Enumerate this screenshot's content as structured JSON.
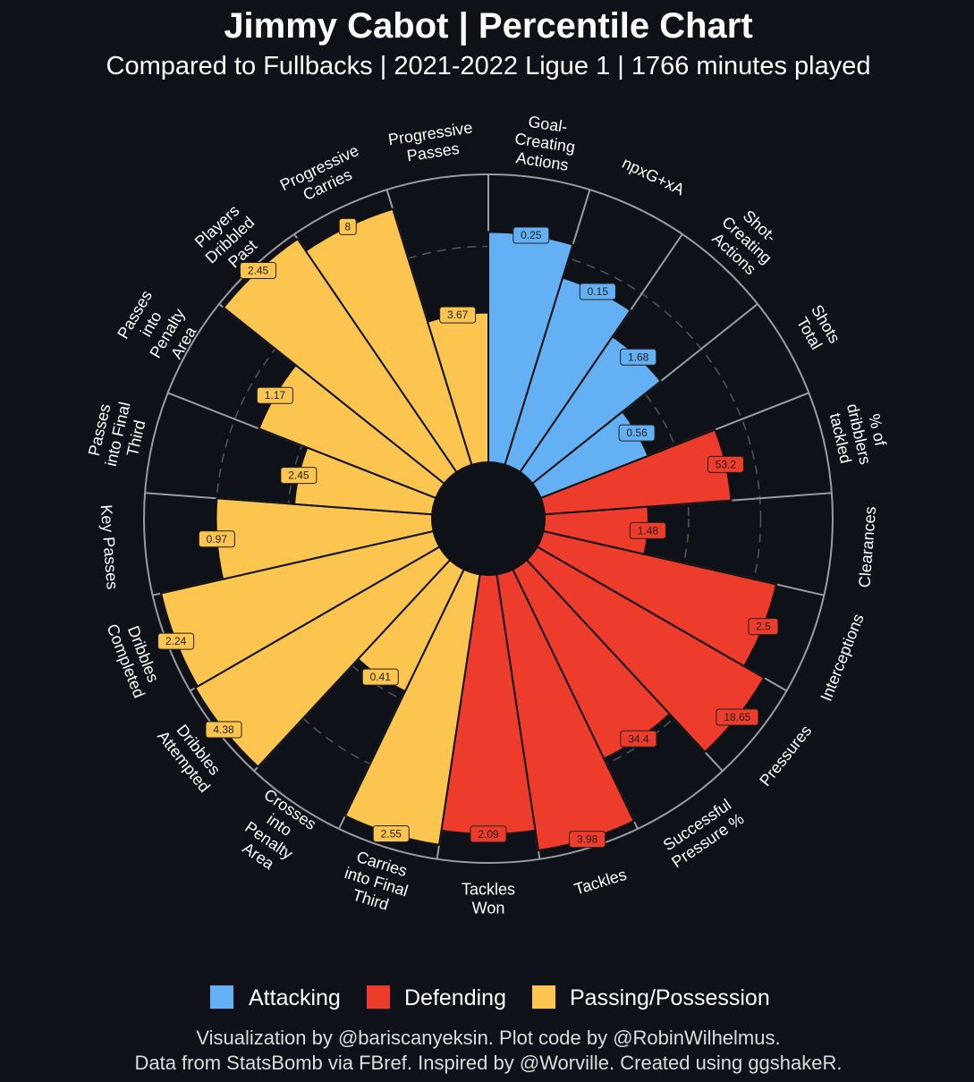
{
  "title": "Jimmy Cabot | Percentile Chart",
  "subtitle": "Compared to Fullbacks | 2021-2022 Ligue 1 | 1766 minutes played",
  "footer": [
    "Visualization by @bariscanyeksin. Plot code by @RobinWilhelmus.",
    "Data from StatsBomb via FBref. Inspired by @Worville. Created using ggshakeR."
  ],
  "colors": {
    "background": "#0e1117",
    "Attacking": "#64b0f4",
    "Defending": "#ed3b2c",
    "Passing/Possession": "#fbc54f"
  },
  "chart_data": {
    "type": "polar-bar",
    "title": "Jimmy Cabot | Percentile Chart",
    "rlim": [
      0,
      100
    ],
    "grid": "dashed circles at 25, 50, 75",
    "legend": {
      "placement": "bottom",
      "entries": [
        "Attacking",
        "Defending",
        "Passing/Possession"
      ]
    },
    "metrics": [
      {
        "label": [
          "Goal-",
          "Creating",
          "Actions"
        ],
        "group": "Attacking",
        "value": "0.25",
        "percentile": 80
      },
      {
        "label": [
          "npxG+xA"
        ],
        "group": "Attacking",
        "value": "0.15",
        "percentile": 68
      },
      {
        "label": [
          "Shot-",
          "Creating",
          "Actions"
        ],
        "group": "Attacking",
        "value": "1.68",
        "percentile": 57
      },
      {
        "label": [
          "Shots",
          "Total"
        ],
        "group": "Attacking",
        "value": "0.56",
        "percentile": 40
      },
      {
        "label": [
          "% of",
          "dribblers",
          "tackled"
        ],
        "group": "Defending",
        "value": "53.2",
        "percentile": 65
      },
      {
        "label": [
          "Clearances"
        ],
        "group": "Defending",
        "value": "1.48",
        "percentile": 36
      },
      {
        "label": [
          "Interceptions"
        ],
        "group": "Defending",
        "value": "2.5",
        "percentile": 83
      },
      {
        "label": [
          "Pressures"
        ],
        "group": "Defending",
        "value": "18.65",
        "percentile": 91
      },
      {
        "label": [
          "Successful",
          "Pressure %"
        ],
        "group": "Defending",
        "value": "34.4",
        "percentile": 73
      },
      {
        "label": [
          "Tackles"
        ],
        "group": "Defending",
        "value": "3.98",
        "percentile": 97
      },
      {
        "label": [
          "Tackles",
          "Won"
        ],
        "group": "Defending",
        "value": "2.09",
        "percentile": 90
      },
      {
        "label": [
          "Carries",
          "into Final",
          "Third"
        ],
        "group": "Passing/Possession",
        "value": "2.55",
        "percentile": 95
      },
      {
        "label": [
          "Crosses",
          "into",
          "Penalty",
          "Area"
        ],
        "group": "Passing/Possession",
        "value": "0.41",
        "percentile": 47
      },
      {
        "label": [
          "Dribbles",
          "Attempted"
        ],
        "group": "Passing/Possession",
        "value": "4.38",
        "percentile": 98
      },
      {
        "label": [
          "Dribbles",
          "Completed"
        ],
        "group": "Passing/Possession",
        "value": "2.24",
        "percentile": 97
      },
      {
        "label": [
          "Key Passes"
        ],
        "group": "Passing/Possession",
        "value": "0.97",
        "percentile": 75
      },
      {
        "label": [
          "Passes",
          "into Final",
          "Third"
        ],
        "group": "Passing/Possession",
        "value": "2.45",
        "percentile": 48
      },
      {
        "label": [
          "Passes",
          "into",
          "Penalty",
          "Area"
        ],
        "group": "Passing/Possession",
        "value": "1.17",
        "percentile": 66
      },
      {
        "label": [
          "Players",
          "Dribbled",
          "Past"
        ],
        "group": "Passing/Possession",
        "value": "2.45",
        "percentile": 98
      },
      {
        "label": [
          "Progressive",
          "Carries"
        ],
        "group": "Passing/Possession",
        "value": "8",
        "percentile": 93
      },
      {
        "label": [
          "Progressive",
          "Passes"
        ],
        "group": "Passing/Possession",
        "value": "3.67",
        "percentile": 52
      }
    ]
  }
}
